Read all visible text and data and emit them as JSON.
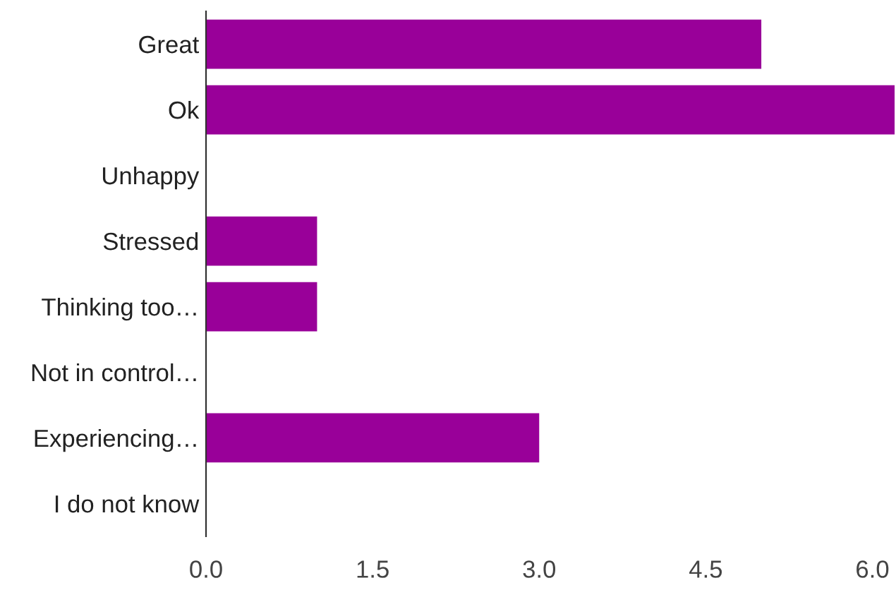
{
  "chart_data": {
    "type": "bar",
    "orientation": "horizontal",
    "categories": [
      "Great",
      "Ok",
      "Unhappy",
      "Stressed",
      "Thinking too…",
      "Not in control…",
      "Experiencing…",
      "I do not know"
    ],
    "values": [
      5,
      6.2,
      0,
      1,
      1,
      0,
      3,
      0
    ],
    "color": "#990099",
    "xlim": [
      0,
      6.2
    ],
    "xticks": [
      {
        "value": 0,
        "label": "0.0"
      },
      {
        "value": 1.5,
        "label": "1.5"
      },
      {
        "value": 3,
        "label": "3.0"
      },
      {
        "value": 4.5,
        "label": "4.5"
      },
      {
        "value": 6,
        "label": "6.0"
      }
    ],
    "grid": false,
    "legend": false
  }
}
